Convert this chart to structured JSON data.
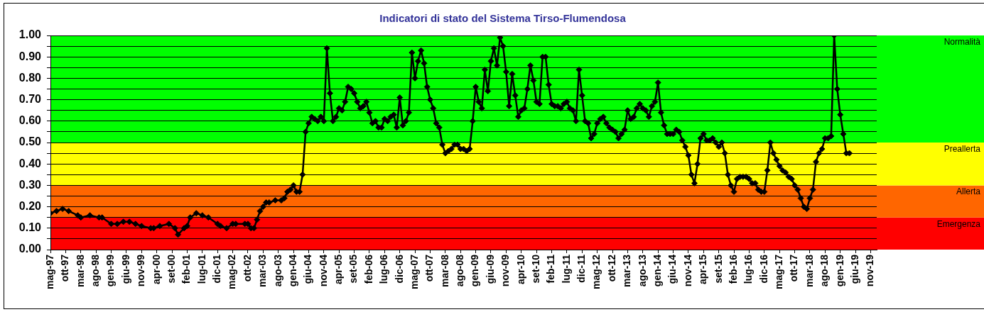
{
  "chart_data": {
    "type": "line",
    "title": "Indicatori di stato del Sistema Tirso-Flumendosa",
    "x": [
      "1997-05",
      "1997-07",
      "1997-09",
      "1997-11",
      "1998-02",
      "1998-03",
      "1998-06",
      "1998-09",
      "1998-10",
      "1999-01",
      "1999-03",
      "1999-05",
      "1999-07",
      "1999-09",
      "1999-11",
      "2000-02",
      "2000-03",
      "2000-05",
      "2000-08",
      "2000-10",
      "2000-11",
      "2001-01",
      "2001-02",
      "2001-03",
      "2001-05",
      "2001-07",
      "2001-09",
      "2001-12",
      "2002-01",
      "2002-03",
      "2002-05",
      "2002-06",
      "2002-09",
      "2002-10",
      "2002-11",
      "2002-12",
      "2003-01",
      "2003-02",
      "2003-03",
      "2003-04",
      "2003-05",
      "2003-07",
      "2003-09",
      "2003-10",
      "2003-11",
      "2003-12",
      "2004-01",
      "2004-02",
      "2004-03",
      "2004-04",
      "2004-05",
      "2004-06",
      "2004-07",
      "2004-08",
      "2004-09",
      "2004-10",
      "2004-11",
      "2004-12",
      "2005-01",
      "2005-02",
      "2005-03",
      "2005-04",
      "2005-05",
      "2005-06",
      "2005-07",
      "2005-08",
      "2005-09",
      "2005-10",
      "2005-11",
      "2005-12",
      "2006-01",
      "2006-02",
      "2006-03",
      "2006-04",
      "2006-05",
      "2006-06",
      "2006-07",
      "2006-08",
      "2006-09",
      "2006-10",
      "2006-11",
      "2006-12",
      "2007-01",
      "2007-02",
      "2007-03",
      "2007-04",
      "2007-05",
      "2007-06",
      "2007-07",
      "2007-08",
      "2007-09",
      "2007-10",
      "2007-11",
      "2007-12",
      "2008-01",
      "2008-02",
      "2008-03",
      "2008-04",
      "2008-05",
      "2008-06",
      "2008-07",
      "2008-08",
      "2008-09",
      "2008-10",
      "2008-11",
      "2008-12",
      "2009-01",
      "2009-02",
      "2009-03",
      "2009-04",
      "2009-05",
      "2009-06",
      "2009-07",
      "2009-08",
      "2009-09",
      "2009-10",
      "2009-11",
      "2009-12",
      "2010-01",
      "2010-02",
      "2010-03",
      "2010-04",
      "2010-05",
      "2010-06",
      "2010-07",
      "2010-08",
      "2010-09",
      "2010-10",
      "2010-11",
      "2010-12",
      "2011-01",
      "2011-02",
      "2011-03",
      "2011-04",
      "2011-05",
      "2011-06",
      "2011-07",
      "2011-08",
      "2011-09",
      "2011-10",
      "2011-11",
      "2011-12",
      "2012-01",
      "2012-02",
      "2012-03",
      "2012-04",
      "2012-05",
      "2012-06",
      "2012-07",
      "2012-08",
      "2012-09",
      "2012-10",
      "2012-11",
      "2012-12",
      "2013-01",
      "2013-02",
      "2013-03",
      "2013-04",
      "2013-05",
      "2013-06",
      "2013-07",
      "2013-08",
      "2013-09",
      "2013-10",
      "2013-11",
      "2013-12",
      "2014-01",
      "2014-02",
      "2014-03",
      "2014-04",
      "2014-05",
      "2014-06",
      "2014-07",
      "2014-08",
      "2014-09",
      "2014-10",
      "2014-11",
      "2014-12",
      "2015-01",
      "2015-02",
      "2015-03",
      "2015-04",
      "2015-05",
      "2015-06",
      "2015-07",
      "2015-08",
      "2015-09",
      "2015-10",
      "2015-11",
      "2015-12",
      "2016-01",
      "2016-02",
      "2016-03",
      "2016-04",
      "2016-05",
      "2016-06",
      "2016-07",
      "2016-08",
      "2016-09",
      "2016-10",
      "2016-11",
      "2016-12",
      "2017-01",
      "2017-02",
      "2017-03",
      "2017-04",
      "2017-05",
      "2017-06",
      "2017-07",
      "2017-08",
      "2017-09",
      "2017-10",
      "2017-11",
      "2017-12",
      "2018-01",
      "2018-02",
      "2018-03",
      "2018-04",
      "2018-05",
      "2018-06",
      "2018-07",
      "2018-08",
      "2018-09",
      "2018-10",
      "2018-11",
      "2018-12",
      "2019-01",
      "2019-02",
      "2019-03",
      "2019-04"
    ],
    "values": [
      0.17,
      0.18,
      0.19,
      0.18,
      0.16,
      0.15,
      0.16,
      0.15,
      0.15,
      0.12,
      0.12,
      0.13,
      0.13,
      0.12,
      0.11,
      0.1,
      0.1,
      0.11,
      0.12,
      0.1,
      0.07,
      0.1,
      0.11,
      0.15,
      0.17,
      0.16,
      0.15,
      0.12,
      0.11,
      0.1,
      0.12,
      0.12,
      0.12,
      0.12,
      0.1,
      0.1,
      0.14,
      0.18,
      0.2,
      0.22,
      0.22,
      0.23,
      0.23,
      0.24,
      0.27,
      0.28,
      0.3,
      0.27,
      0.27,
      0.35,
      0.55,
      0.59,
      0.62,
      0.61,
      0.6,
      0.62,
      0.6,
      0.94,
      0.73,
      0.6,
      0.62,
      0.66,
      0.65,
      0.69,
      0.76,
      0.75,
      0.73,
      0.69,
      0.66,
      0.67,
      0.69,
      0.64,
      0.59,
      0.6,
      0.57,
      0.57,
      0.61,
      0.6,
      0.62,
      0.63,
      0.57,
      0.71,
      0.58,
      0.6,
      0.64,
      0.92,
      0.8,
      0.88,
      0.93,
      0.87,
      0.76,
      0.7,
      0.66,
      0.59,
      0.57,
      0.49,
      0.45,
      0.46,
      0.47,
      0.49,
      0.49,
      0.47,
      0.47,
      0.46,
      0.47,
      0.6,
      0.76,
      0.69,
      0.66,
      0.84,
      0.74,
      0.88,
      0.94,
      0.86,
      0.99,
      0.95,
      0.83,
      0.67,
      0.82,
      0.72,
      0.62,
      0.65,
      0.66,
      0.75,
      0.86,
      0.79,
      0.69,
      0.68,
      0.9,
      0.9,
      0.77,
      0.68,
      0.67,
      0.67,
      0.66,
      0.68,
      0.69,
      0.66,
      0.65,
      0.6,
      0.84,
      0.72,
      0.6,
      0.59,
      0.52,
      0.54,
      0.59,
      0.61,
      0.62,
      0.59,
      0.57,
      0.56,
      0.55,
      0.52,
      0.54,
      0.56,
      0.65,
      0.61,
      0.62,
      0.66,
      0.68,
      0.66,
      0.65,
      0.62,
      0.67,
      0.69,
      0.78,
      0.64,
      0.58,
      0.54,
      0.54,
      0.54,
      0.56,
      0.55,
      0.51,
      0.48,
      0.44,
      0.35,
      0.31,
      0.4,
      0.52,
      0.54,
      0.51,
      0.51,
      0.52,
      0.5,
      0.48,
      0.5,
      0.45,
      0.35,
      0.3,
      0.27,
      0.33,
      0.34,
      0.34,
      0.34,
      0.33,
      0.31,
      0.31,
      0.28,
      0.27,
      0.27,
      0.37,
      0.5,
      0.45,
      0.42,
      0.39,
      0.37,
      0.36,
      0.34,
      0.33,
      0.3,
      0.28,
      0.24,
      0.2,
      0.19,
      0.24,
      0.28,
      0.41,
      0.45,
      0.47,
      0.52,
      0.52,
      0.53,
      1.0,
      0.75,
      0.63,
      0.54,
      0.45,
      0.45
    ],
    "color": "#000000",
    "marker": "diamond",
    "line_style": "solid",
    "grid": "y",
    "xlim": [
      "1997-05",
      "2020-01"
    ],
    "xticks": [
      {
        "value": "1997-05",
        "label": "mag-97"
      },
      {
        "value": "1997-10",
        "label": "ott-97"
      },
      {
        "value": "1998-03",
        "label": "mar-98"
      },
      {
        "value": "1998-08",
        "label": "ago-98"
      },
      {
        "value": "1999-01",
        "label": "gen-99"
      },
      {
        "value": "1999-06",
        "label": "giu-99"
      },
      {
        "value": "1999-11",
        "label": "nov-99"
      },
      {
        "value": "2000-04",
        "label": "apr-00"
      },
      {
        "value": "2000-09",
        "label": "set-00"
      },
      {
        "value": "2001-02",
        "label": "feb-01"
      },
      {
        "value": "2001-07",
        "label": "lug-01"
      },
      {
        "value": "2001-12",
        "label": "dic-01"
      },
      {
        "value": "2002-05",
        "label": "mag-02"
      },
      {
        "value": "2002-10",
        "label": "ott-02"
      },
      {
        "value": "2003-03",
        "label": "mar-03"
      },
      {
        "value": "2003-08",
        "label": "ago-03"
      },
      {
        "value": "2004-01",
        "label": "gen-04"
      },
      {
        "value": "2004-06",
        "label": "giu-04"
      },
      {
        "value": "2004-11",
        "label": "nov-04"
      },
      {
        "value": "2005-04",
        "label": "apr-05"
      },
      {
        "value": "2005-09",
        "label": "set-05"
      },
      {
        "value": "2006-02",
        "label": "feb-06"
      },
      {
        "value": "2006-07",
        "label": "lug-06"
      },
      {
        "value": "2006-12",
        "label": "dic-06"
      },
      {
        "value": "2007-05",
        "label": "mag-07"
      },
      {
        "value": "2007-10",
        "label": "ott-07"
      },
      {
        "value": "2008-03",
        "label": "mar-08"
      },
      {
        "value": "2008-08",
        "label": "ago-08"
      },
      {
        "value": "2009-01",
        "label": "gen-09"
      },
      {
        "value": "2009-06",
        "label": "giu-09"
      },
      {
        "value": "2009-11",
        "label": "nov-09"
      },
      {
        "value": "2010-04",
        "label": "apr-10"
      },
      {
        "value": "2010-09",
        "label": "set-10"
      },
      {
        "value": "2011-02",
        "label": "feb-11"
      },
      {
        "value": "2011-07",
        "label": "lug-11"
      },
      {
        "value": "2011-12",
        "label": "dic-11"
      },
      {
        "value": "2012-05",
        "label": "mag-12"
      },
      {
        "value": "2012-10",
        "label": "ott-12"
      },
      {
        "value": "2013-03",
        "label": "mar-13"
      },
      {
        "value": "2013-08",
        "label": "ago-13"
      },
      {
        "value": "2014-01",
        "label": "gen-14"
      },
      {
        "value": "2014-06",
        "label": "giu-14"
      },
      {
        "value": "2014-11",
        "label": "nov-14"
      },
      {
        "value": "2015-04",
        "label": "apr-15"
      },
      {
        "value": "2015-09",
        "label": "set-15"
      },
      {
        "value": "2016-02",
        "label": "feb-16"
      },
      {
        "value": "2016-07",
        "label": "lug-16"
      },
      {
        "value": "2016-12",
        "label": "dic-16"
      },
      {
        "value": "2017-05",
        "label": "mag-17"
      },
      {
        "value": "2017-10",
        "label": "ott-17"
      },
      {
        "value": "2018-03",
        "label": "mar-18"
      },
      {
        "value": "2018-08",
        "label": "ago-18"
      },
      {
        "value": "2019-01",
        "label": "gen-19"
      },
      {
        "value": "2019-06",
        "label": "giu-19"
      },
      {
        "value": "2019-11",
        "label": "nov-19"
      }
    ],
    "ylim": [
      0,
      1
    ],
    "yticks": [
      {
        "value": 0,
        "label": "0.00"
      },
      {
        "value": 0.05,
        "label": null
      },
      {
        "value": 0.1,
        "label": "0.10"
      },
      {
        "value": 0.15,
        "label": null
      },
      {
        "value": 0.2,
        "label": "0.20"
      },
      {
        "value": 0.25,
        "label": null
      },
      {
        "value": 0.3,
        "label": "0.30"
      },
      {
        "value": 0.35,
        "label": null
      },
      {
        "value": 0.4,
        "label": "0.40"
      },
      {
        "value": 0.45,
        "label": null
      },
      {
        "value": 0.5,
        "label": "0.50"
      },
      {
        "value": 0.55,
        "label": null
      },
      {
        "value": 0.6,
        "label": "0.60"
      },
      {
        "value": 0.65,
        "label": null
      },
      {
        "value": 0.7,
        "label": "0.70"
      },
      {
        "value": 0.75,
        "label": null
      },
      {
        "value": 0.8,
        "label": "0.80"
      },
      {
        "value": 0.85,
        "label": null
      },
      {
        "value": 0.9,
        "label": "0.90"
      },
      {
        "value": 0.95,
        "label": null
      },
      {
        "value": 1,
        "label": "1.00"
      }
    ],
    "bands": [
      {
        "axis": "y",
        "from": 0,
        "to": 0.15,
        "label": "Emergenza",
        "color": "#ff0000"
      },
      {
        "axis": "y",
        "from": 0.15,
        "to": 0.3,
        "label": "Allerta",
        "color": "#ff6600"
      },
      {
        "axis": "y",
        "from": 0.3,
        "to": 0.5,
        "label": "Preallerta",
        "color": "#ffff00"
      },
      {
        "axis": "y",
        "from": 0.5,
        "to": 1,
        "label": "Normalità",
        "color": "#00ff00"
      }
    ]
  }
}
